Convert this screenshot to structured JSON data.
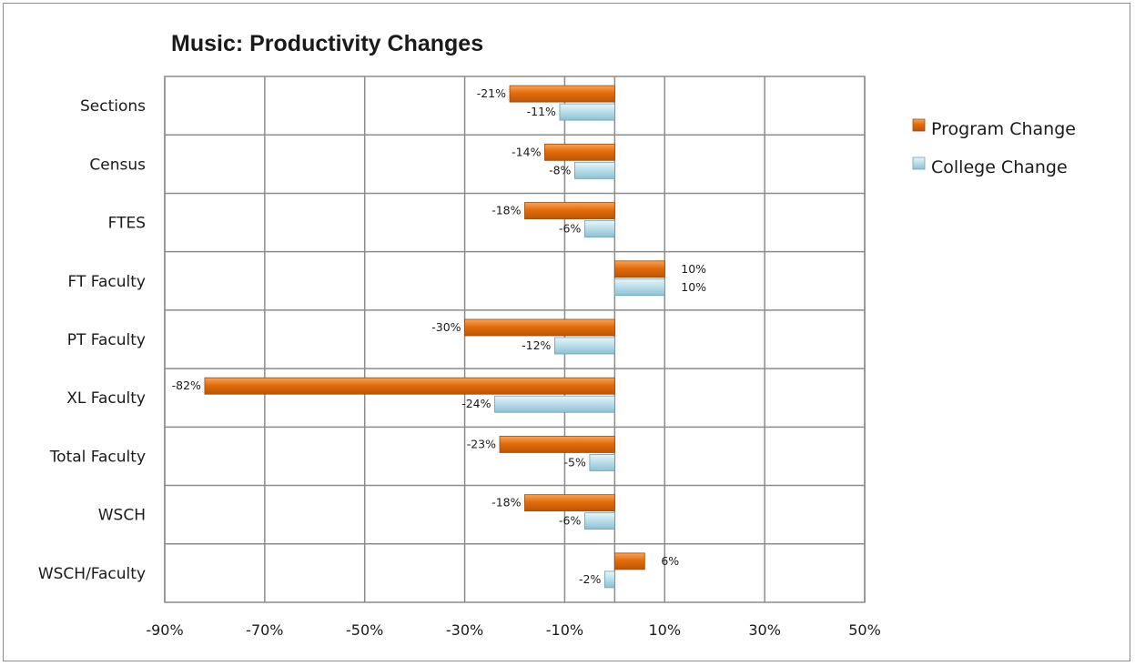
{
  "chart_data": {
    "type": "bar",
    "orientation": "horizontal",
    "title": "Music: Productivity Changes",
    "categories": [
      "Sections",
      "Census",
      "FTES",
      "FT Faculty",
      "PT Faculty",
      "XL Faculty",
      "Total Faculty",
      "WSCH",
      "WSCH/Faculty"
    ],
    "series": [
      {
        "name": "Program Change",
        "values": [
          -21,
          -14,
          -18,
          10,
          -30,
          -82,
          -23,
          -18,
          6
        ],
        "color": "#e46c0a"
      },
      {
        "name": "College Change",
        "values": [
          -11,
          -8,
          -6,
          10,
          -12,
          -24,
          -5,
          -6,
          -2
        ],
        "color": "#b7dde8"
      }
    ],
    "data_labels": {
      "Program Change": [
        "-21%",
        "-14%",
        "-18%",
        "10%",
        "-30%",
        "-82%",
        "-23%",
        "-18%",
        "6%"
      ],
      "College Change": [
        "-11%",
        "-8%",
        "-6%",
        "10%",
        "-12%",
        "-24%",
        "-5%",
        "-6%",
        "-2%"
      ]
    },
    "xlim": [
      -90,
      50
    ],
    "xticks": [
      -90,
      -70,
      -50,
      -30,
      -10,
      10,
      30,
      50
    ],
    "xtick_labels": [
      "-90%",
      "-70%",
      "-50%",
      "-30%",
      "-10%",
      "10%",
      "30%",
      "50%"
    ],
    "xlabel": "",
    "ylabel": "",
    "grid": true,
    "legend_position": "right"
  }
}
